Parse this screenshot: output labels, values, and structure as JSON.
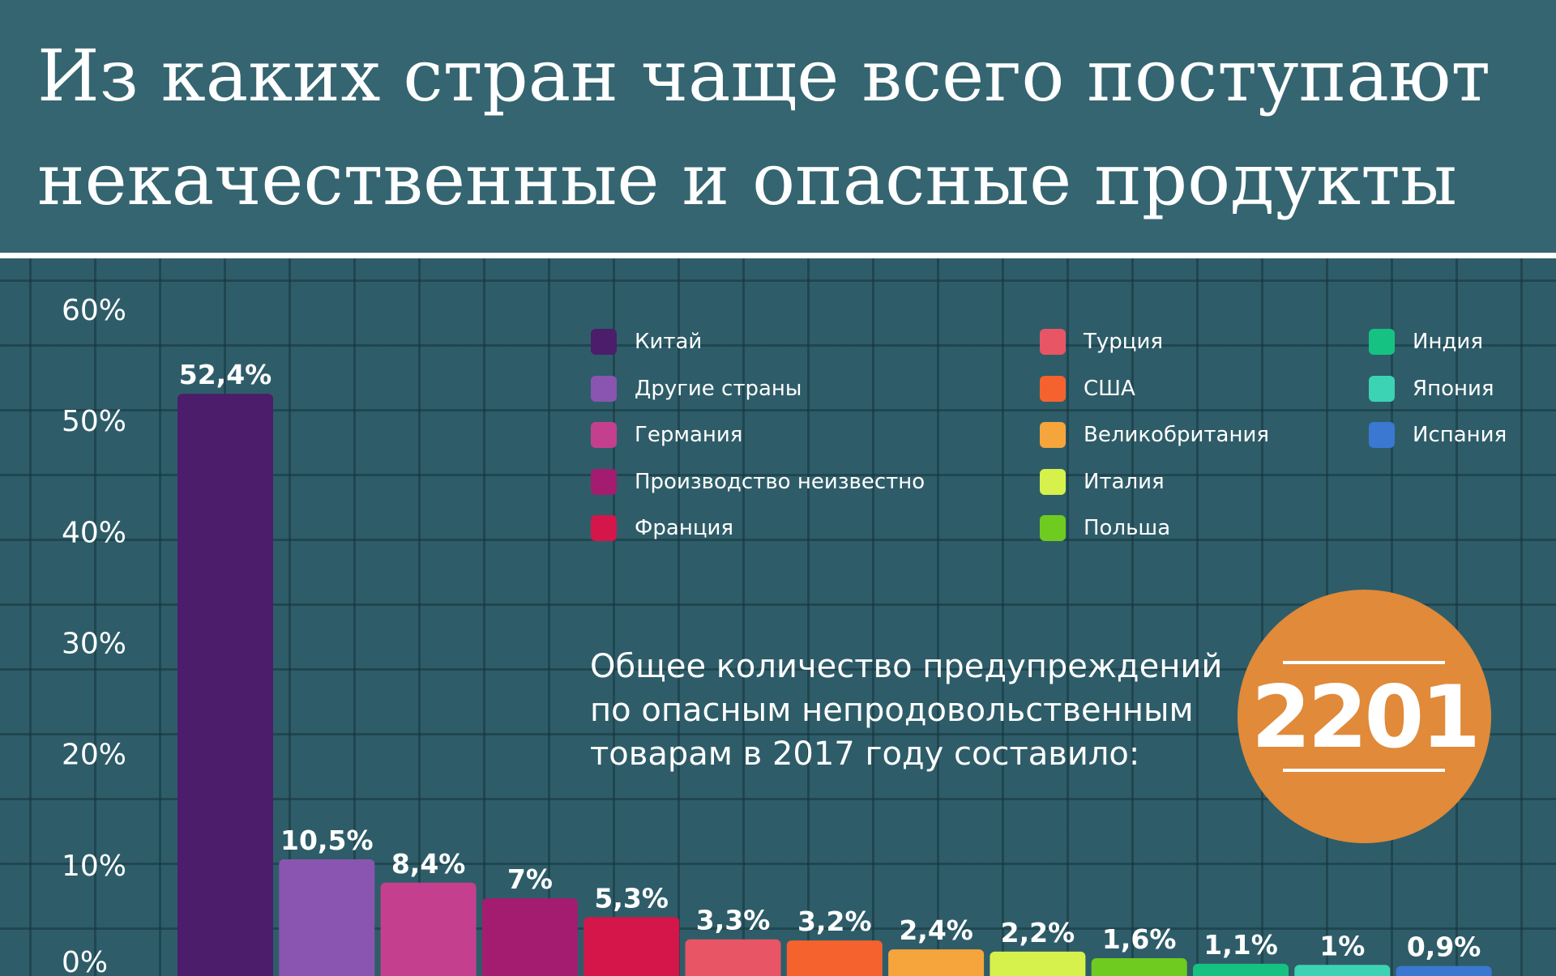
{
  "chart_data": {
    "type": "bar",
    "title": "Из каких стран чаще всего поступают некачественные и опасные продукты",
    "ylim": [
      0,
      60
    ],
    "yticks": [
      "0%",
      "10%",
      "20%",
      "30%",
      "40%",
      "50%",
      "60%"
    ],
    "grid": true,
    "legend_position": "top-right",
    "categories": [
      "Китай",
      "Другие страны",
      "Германия",
      "Производство неизвестно",
      "Франция",
      "Турция",
      "США",
      "Великобритания",
      "Италия",
      "Польша",
      "Индия",
      "Япония",
      "Испания"
    ],
    "values": [
      52.4,
      10.5,
      8.4,
      7,
      5.3,
      3.3,
      3.2,
      2.4,
      2.2,
      1.6,
      1.1,
      1,
      0.9
    ],
    "value_labels": [
      "52,4%",
      "10,5%",
      "8,4%",
      "7%",
      "5,3%",
      "3,3%",
      "3,2%",
      "2,4%",
      "2,2%",
      "1,6%",
      "1,1%",
      "1%",
      "0,9%"
    ],
    "colors": [
      "#4b1d6b",
      "#8a55b0",
      "#c4408e",
      "#a41c70",
      "#d4164a",
      "#e85564",
      "#f5622d",
      "#f6a43c",
      "#d6f04c",
      "#6fcb1f",
      "#16c282",
      "#3cd3b4",
      "#3b78d2"
    ]
  },
  "annotation": {
    "text": "Общее количество предупреждений\nпо опасным непродовольственным\nтоварам в 2017 году составило:",
    "total": "2201",
    "badge_color": "#e08a3a"
  }
}
